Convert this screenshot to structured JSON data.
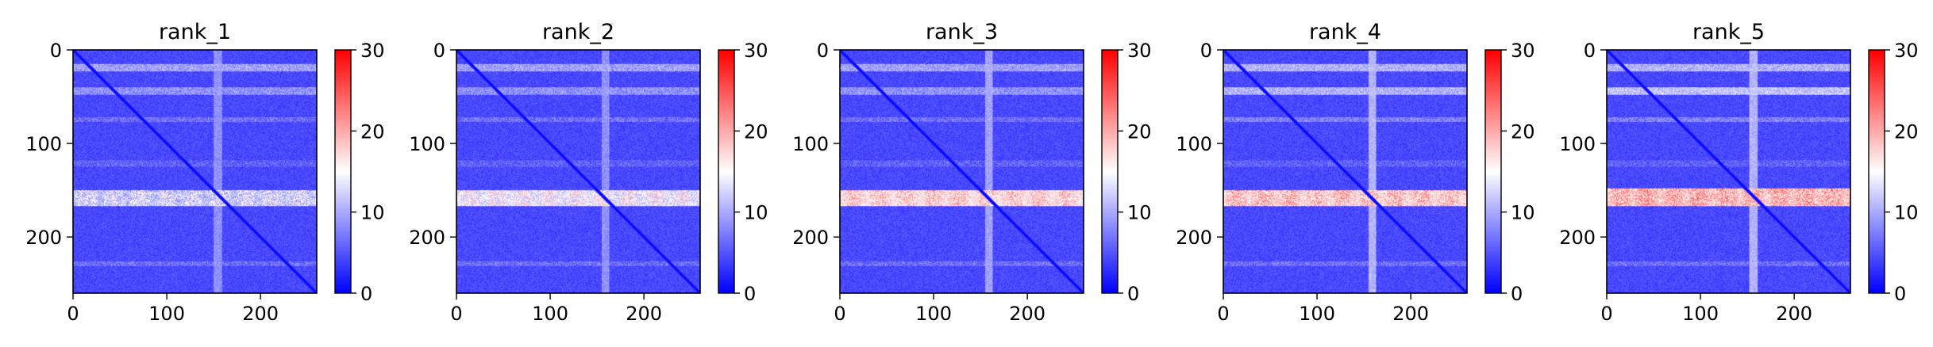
{
  "chart_data": {
    "type": "heatmap",
    "colormap": "bwr",
    "colors": {
      "low": "#0000ff",
      "mid": "#ffffff",
      "high": "#ff0000"
    },
    "grid": false,
    "matrix_size": 260,
    "vmin": 0,
    "vmax": 30,
    "x_ticks": [
      "0",
      "100",
      "200"
    ],
    "y_ticks": [
      "0",
      "100",
      "200"
    ],
    "colorbar_ticks": [
      "0",
      "10",
      "20",
      "30"
    ],
    "panels": [
      {
        "title": "rank_1",
        "background": 3,
        "diagonal": 0,
        "bright_rows": [
          [
            15,
            22,
            10
          ],
          [
            40,
            47,
            9
          ],
          [
            72,
            76,
            7
          ],
          [
            118,
            124,
            6
          ],
          [
            226,
            230,
            7
          ]
        ],
        "bright_cols": [
          [
            150,
            158,
            9
          ]
        ],
        "hot_band": [
          150,
          166,
          15
        ]
      },
      {
        "title": "rank_2",
        "background": 3,
        "diagonal": 0,
        "bright_rows": [
          [
            15,
            22,
            10
          ],
          [
            40,
            47,
            9
          ],
          [
            72,
            76,
            7
          ],
          [
            118,
            124,
            6
          ],
          [
            226,
            230,
            7
          ]
        ],
        "bright_cols": [
          [
            155,
            162,
            9
          ]
        ],
        "hot_band": [
          150,
          166,
          17
        ]
      },
      {
        "title": "rank_3",
        "background": 3,
        "diagonal": 0,
        "bright_rows": [
          [
            15,
            22,
            10
          ],
          [
            40,
            47,
            9
          ],
          [
            72,
            76,
            7
          ],
          [
            118,
            124,
            6
          ],
          [
            226,
            230,
            7
          ]
        ],
        "bright_cols": [
          [
            155,
            162,
            10
          ]
        ],
        "hot_band": [
          150,
          166,
          20
        ]
      },
      {
        "title": "rank_4",
        "background": 3,
        "diagonal": 0,
        "bright_rows": [
          [
            15,
            22,
            11
          ],
          [
            40,
            47,
            11
          ],
          [
            72,
            76,
            8
          ],
          [
            118,
            124,
            6
          ],
          [
            226,
            230,
            7
          ]
        ],
        "bright_cols": [
          [
            155,
            162,
            11
          ]
        ],
        "hot_band": [
          150,
          166,
          21
        ]
      },
      {
        "title": "rank_5",
        "background": 3,
        "diagonal": 0,
        "bright_rows": [
          [
            15,
            22,
            11
          ],
          [
            40,
            47,
            12
          ],
          [
            72,
            76,
            8
          ],
          [
            118,
            124,
            6
          ],
          [
            226,
            230,
            7
          ]
        ],
        "bright_cols": [
          [
            152,
            160,
            11
          ]
        ],
        "hot_band": [
          148,
          166,
          22
        ]
      }
    ]
  }
}
